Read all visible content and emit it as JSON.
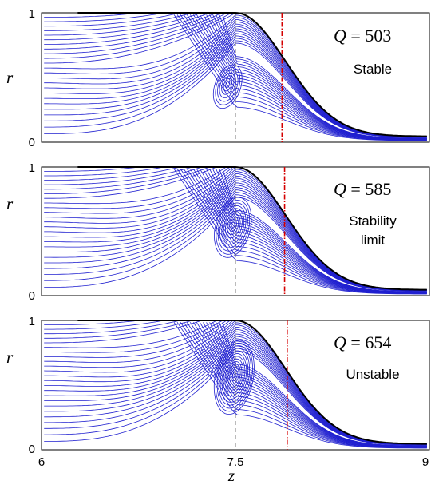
{
  "chart_data": [
    {
      "type": "line",
      "subtype": "streamline-contours",
      "annotation": {
        "symbol": "Q",
        "eq": "=",
        "value": "503",
        "condition": [
          "Stable"
        ]
      },
      "xlim": [
        6,
        9
      ],
      "ylim": [
        0,
        1
      ],
      "xticks": [],
      "yticks": [
        "0",
        "1"
      ],
      "ylabel": "r",
      "xlabel": "",
      "neck_z": 7.5,
      "critical_z": 7.86,
      "vortex": {
        "z": 7.44,
        "r": 0.45,
        "half_width": 0.09,
        "half_height": 0.13
      },
      "colors": {
        "streamlines": "#2020d0",
        "critical_line": "#d40000",
        "neck_line": "#777777",
        "outline": "#000000"
      }
    },
    {
      "type": "line",
      "subtype": "streamline-contours",
      "annotation": {
        "symbol": "Q",
        "eq": "=",
        "value": "585",
        "condition": [
          "Stability",
          "limit"
        ]
      },
      "xlim": [
        6,
        9
      ],
      "ylim": [
        0,
        1
      ],
      "xticks": [],
      "yticks": [
        "0",
        "1"
      ],
      "ylabel": "r",
      "xlabel": "",
      "neck_z": 7.5,
      "critical_z": 7.88,
      "vortex": {
        "z": 7.48,
        "r": 0.55,
        "half_width": 0.12,
        "half_height": 0.18
      },
      "colors": {
        "streamlines": "#2020d0",
        "critical_line": "#d40000",
        "neck_line": "#777777",
        "outline": "#000000"
      }
    },
    {
      "type": "line",
      "subtype": "streamline-contours",
      "annotation": {
        "symbol": "Q",
        "eq": "=",
        "value": "654",
        "condition": [
          "Unstable"
        ]
      },
      "xlim": [
        6,
        9
      ],
      "ylim": [
        0,
        1
      ],
      "xticks": [
        "6",
        "7.5",
        "9"
      ],
      "yticks": [
        "0",
        "1"
      ],
      "ylabel": "r",
      "xlabel": "z",
      "neck_z": 7.5,
      "critical_z": 7.9,
      "vortex": {
        "z": 7.49,
        "r": 0.58,
        "half_width": 0.13,
        "half_height": 0.22
      },
      "colors": {
        "streamlines": "#2020d0",
        "critical_line": "#d40000",
        "neck_line": "#777777",
        "outline": "#000000"
      }
    }
  ]
}
